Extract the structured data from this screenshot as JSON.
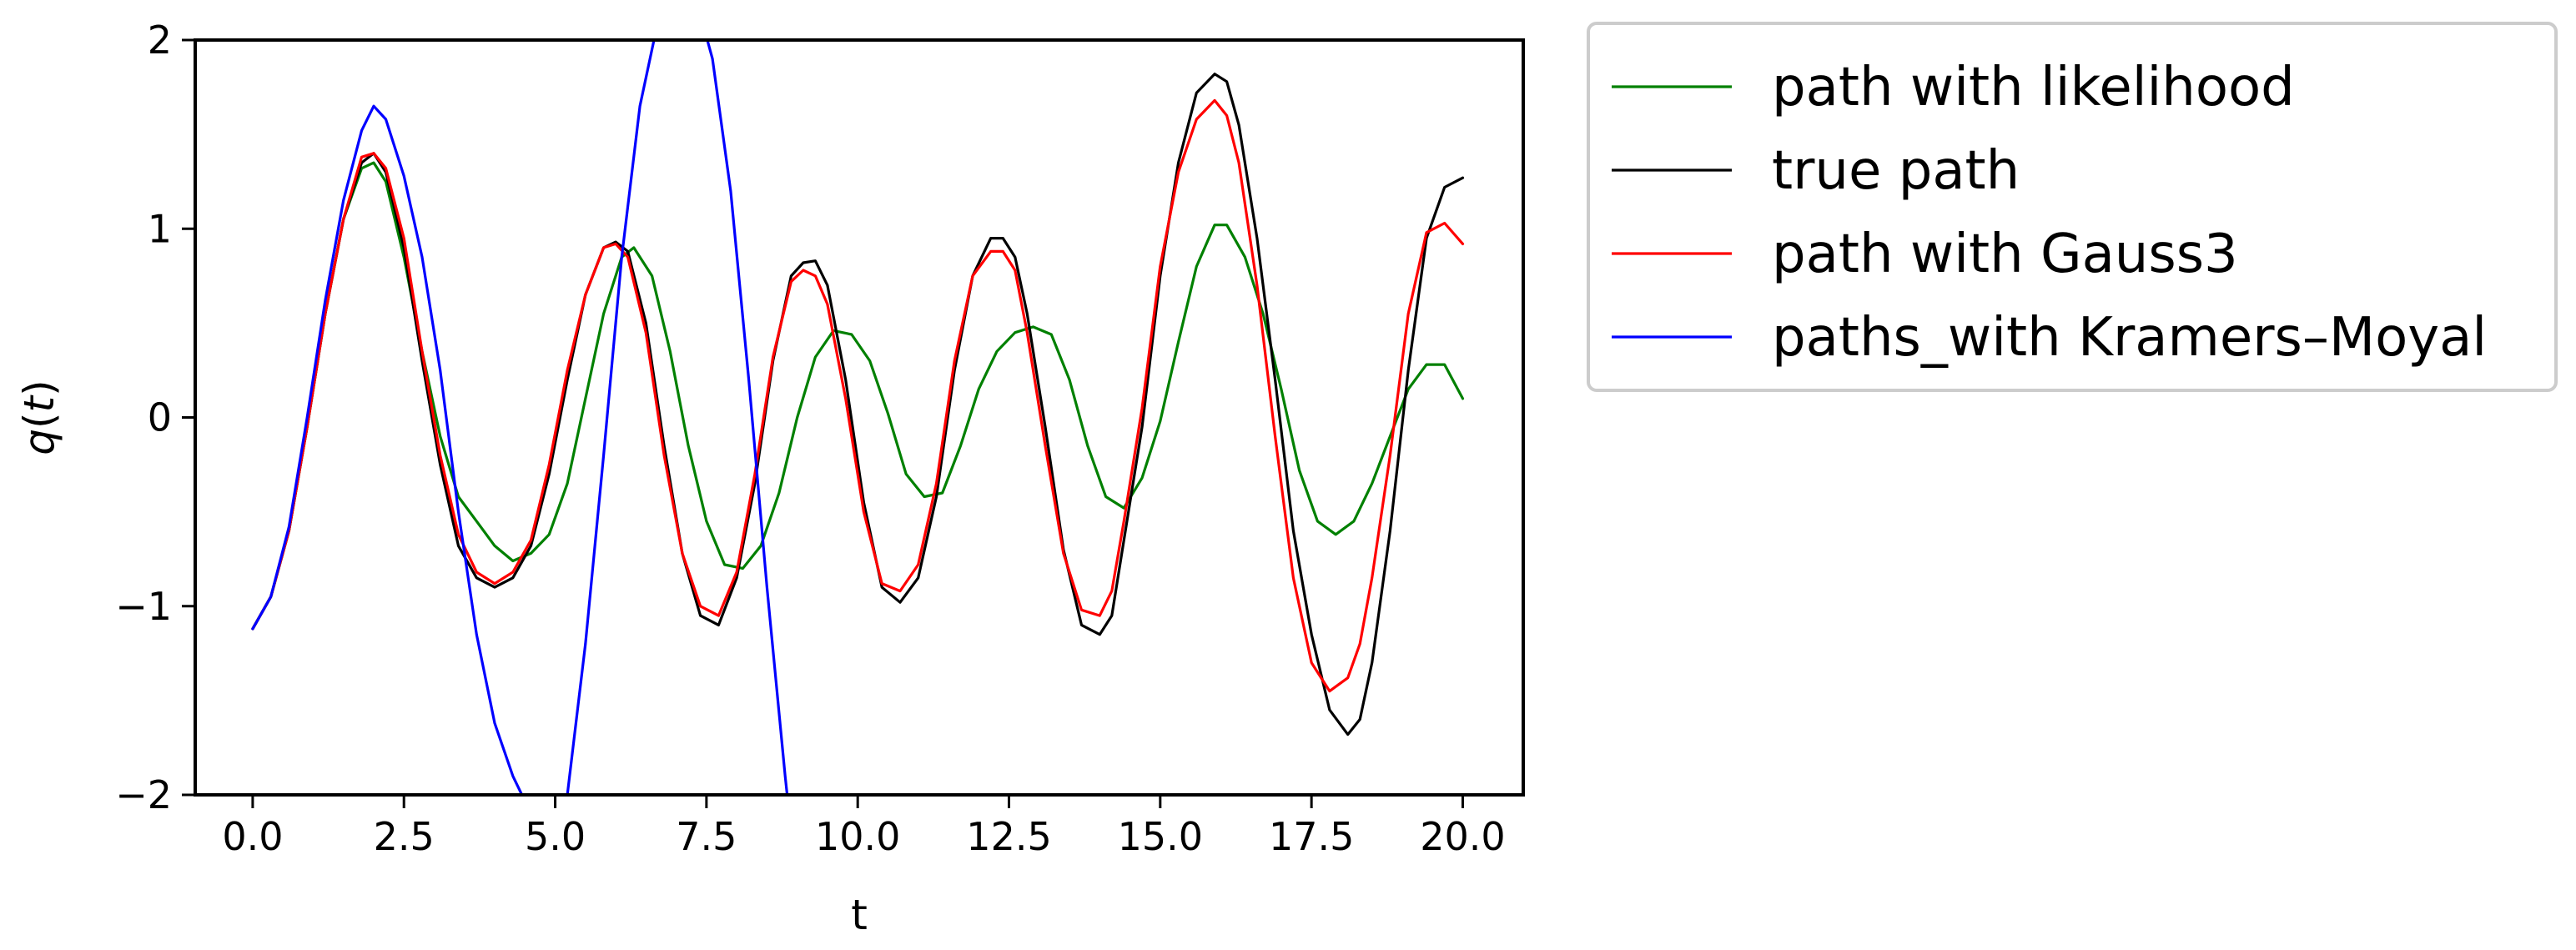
{
  "chart_data": {
    "type": "line",
    "title": "",
    "xlabel": "t",
    "ylabel": "q(t)",
    "xlim": [
      -0.95,
      21.0
    ],
    "ylim": [
      -2,
      2
    ],
    "xticks": [
      0.0,
      2.5,
      5.0,
      7.5,
      10.0,
      12.5,
      15.0,
      17.5,
      20.0
    ],
    "xtick_labels": [
      "0.0",
      "2.5",
      "5.0",
      "7.5",
      "10.0",
      "12.5",
      "15.0",
      "17.5",
      "20.0"
    ],
    "yticks": [
      -2,
      -1,
      0,
      1,
      2
    ],
    "ytick_labels": [
      "−2",
      "−1",
      "0",
      "1",
      "2"
    ],
    "grid": false,
    "legend_position": "outside-right-top",
    "series": [
      {
        "name": "path with likelihood",
        "color": "#008000",
        "x": [
          0,
          0.3,
          0.6,
          0.9,
          1.2,
          1.5,
          1.8,
          2.0,
          2.2,
          2.5,
          2.8,
          3.1,
          3.4,
          3.7,
          4.0,
          4.3,
          4.6,
          4.9,
          5.2,
          5.5,
          5.8,
          6.1,
          6.3,
          6.6,
          6.9,
          7.2,
          7.5,
          7.8,
          8.1,
          8.4,
          8.7,
          9.0,
          9.3,
          9.6,
          9.9,
          10.2,
          10.5,
          10.8,
          11.1,
          11.4,
          11.7,
          12.0,
          12.3,
          12.6,
          12.9,
          13.2,
          13.5,
          13.8,
          14.1,
          14.4,
          14.7,
          15.0,
          15.3,
          15.6,
          15.9,
          16.1,
          16.4,
          16.7,
          17.0,
          17.3,
          17.6,
          17.9,
          18.2,
          18.5,
          18.8,
          19.1,
          19.4,
          19.7,
          20.0
        ],
        "values": [
          -1.12,
          -0.95,
          -0.6,
          -0.05,
          0.55,
          1.05,
          1.32,
          1.35,
          1.25,
          0.85,
          0.35,
          -0.1,
          -0.42,
          -0.55,
          -0.68,
          -0.76,
          -0.72,
          -0.62,
          -0.35,
          0.1,
          0.55,
          0.85,
          0.9,
          0.75,
          0.35,
          -0.15,
          -0.55,
          -0.78,
          -0.8,
          -0.68,
          -0.4,
          0.0,
          0.32,
          0.46,
          0.44,
          0.3,
          0.02,
          -0.3,
          -0.42,
          -0.4,
          -0.15,
          0.15,
          0.35,
          0.45,
          0.48,
          0.44,
          0.2,
          -0.15,
          -0.42,
          -0.48,
          -0.32,
          -0.02,
          0.4,
          0.8,
          1.02,
          1.02,
          0.85,
          0.55,
          0.15,
          -0.28,
          -0.55,
          -0.62,
          -0.55,
          -0.35,
          -0.1,
          0.15,
          0.28,
          0.28,
          0.1
        ]
      },
      {
        "name": "true path",
        "color": "#000000",
        "x": [
          0,
          0.3,
          0.6,
          0.9,
          1.2,
          1.5,
          1.8,
          2.0,
          2.2,
          2.5,
          2.8,
          3.1,
          3.4,
          3.7,
          4.0,
          4.3,
          4.6,
          4.9,
          5.2,
          5.5,
          5.8,
          6.0,
          6.2,
          6.5,
          6.8,
          7.1,
          7.4,
          7.7,
          8.0,
          8.3,
          8.6,
          8.9,
          9.1,
          9.3,
          9.5,
          9.8,
          10.1,
          10.4,
          10.7,
          11.0,
          11.3,
          11.6,
          11.9,
          12.2,
          12.4,
          12.6,
          12.8,
          13.1,
          13.4,
          13.7,
          14.0,
          14.2,
          14.4,
          14.7,
          15.0,
          15.3,
          15.6,
          15.9,
          16.1,
          16.3,
          16.6,
          16.9,
          17.2,
          17.5,
          17.8,
          18.1,
          18.3,
          18.5,
          18.8,
          19.1,
          19.4,
          19.7,
          20.0
        ],
        "values": [
          -1.12,
          -0.95,
          -0.6,
          -0.05,
          0.55,
          1.05,
          1.35,
          1.4,
          1.3,
          0.9,
          0.3,
          -0.25,
          -0.68,
          -0.85,
          -0.9,
          -0.85,
          -0.68,
          -0.3,
          0.2,
          0.65,
          0.9,
          0.93,
          0.88,
          0.5,
          -0.15,
          -0.72,
          -1.05,
          -1.1,
          -0.85,
          -0.35,
          0.3,
          0.75,
          0.82,
          0.83,
          0.7,
          0.2,
          -0.45,
          -0.9,
          -0.98,
          -0.85,
          -0.42,
          0.25,
          0.75,
          0.95,
          0.95,
          0.85,
          0.55,
          -0.05,
          -0.7,
          -1.1,
          -1.15,
          -1.05,
          -0.65,
          -0.05,
          0.75,
          1.35,
          1.72,
          1.82,
          1.78,
          1.55,
          0.95,
          0.2,
          -0.6,
          -1.15,
          -1.55,
          -1.68,
          -1.6,
          -1.3,
          -0.6,
          0.25,
          0.95,
          1.22,
          1.27
        ]
      },
      {
        "name": "path with Gauss3",
        "color": "#ff0000",
        "x": [
          0,
          0.3,
          0.6,
          0.9,
          1.2,
          1.5,
          1.8,
          2.0,
          2.2,
          2.5,
          2.8,
          3.1,
          3.4,
          3.7,
          4.0,
          4.3,
          4.6,
          4.9,
          5.2,
          5.5,
          5.8,
          6.0,
          6.2,
          6.5,
          6.8,
          7.1,
          7.4,
          7.7,
          8.0,
          8.3,
          8.6,
          8.9,
          9.1,
          9.3,
          9.5,
          9.8,
          10.1,
          10.4,
          10.7,
          11.0,
          11.3,
          11.6,
          11.9,
          12.2,
          12.4,
          12.6,
          12.8,
          13.1,
          13.4,
          13.7,
          14.0,
          14.2,
          14.4,
          14.7,
          15.0,
          15.3,
          15.6,
          15.9,
          16.1,
          16.3,
          16.6,
          16.9,
          17.2,
          17.5,
          17.8,
          18.1,
          18.3,
          18.5,
          18.8,
          19.1,
          19.4,
          19.7,
          20.0
        ],
        "values": [
          -1.12,
          -0.95,
          -0.6,
          -0.05,
          0.55,
          1.05,
          1.38,
          1.4,
          1.32,
          0.95,
          0.35,
          -0.2,
          -0.62,
          -0.82,
          -0.88,
          -0.82,
          -0.65,
          -0.25,
          0.25,
          0.65,
          0.9,
          0.92,
          0.85,
          0.45,
          -0.2,
          -0.72,
          -1.0,
          -1.05,
          -0.82,
          -0.3,
          0.32,
          0.72,
          0.78,
          0.75,
          0.6,
          0.1,
          -0.5,
          -0.88,
          -0.92,
          -0.78,
          -0.35,
          0.3,
          0.75,
          0.88,
          0.88,
          0.78,
          0.45,
          -0.15,
          -0.72,
          -1.02,
          -1.05,
          -0.92,
          -0.55,
          0.05,
          0.8,
          1.3,
          1.58,
          1.68,
          1.6,
          1.35,
          0.7,
          -0.1,
          -0.85,
          -1.3,
          -1.45,
          -1.38,
          -1.2,
          -0.85,
          -0.2,
          0.55,
          0.98,
          1.03,
          0.92
        ]
      },
      {
        "name": "paths_with Kramers–Moyal",
        "color": "#0000ff",
        "x": [
          0,
          0.3,
          0.6,
          0.9,
          1.2,
          1.5,
          1.8,
          2.0,
          2.2,
          2.5,
          2.8,
          3.1,
          3.4,
          3.7,
          4.0,
          4.3,
          4.6,
          4.9,
          5.2,
          5.5,
          5.8,
          6.1,
          6.4,
          6.7,
          7.0,
          7.3,
          7.6,
          7.9,
          8.2,
          8.5,
          8.8,
          9.1
        ],
        "values": [
          -1.12,
          -0.95,
          -0.58,
          0.0,
          0.62,
          1.15,
          1.52,
          1.65,
          1.58,
          1.28,
          0.85,
          0.25,
          -0.5,
          -1.15,
          -1.62,
          -1.9,
          -2.1,
          -2.3,
          -2.0,
          -1.2,
          -0.2,
          0.85,
          1.65,
          2.1,
          2.3,
          2.25,
          1.9,
          1.2,
          0.2,
          -0.9,
          -1.9,
          -2.8
        ]
      }
    ]
  }
}
